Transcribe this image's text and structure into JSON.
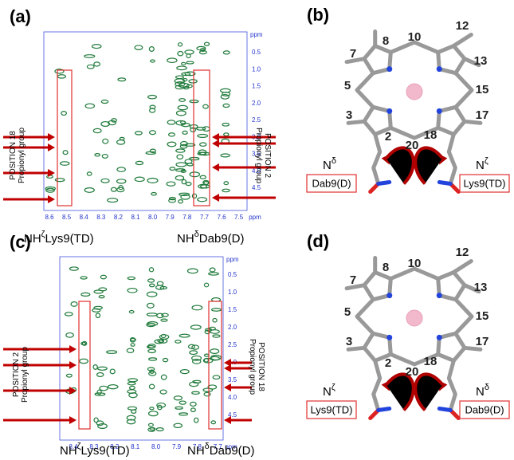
{
  "spectra": [
    {
      "label": "(a)",
      "unit": "ppm",
      "xticks": [
        "8.6",
        "8.5",
        "8.4",
        "8.3",
        "8.2",
        "8.1",
        "8.0",
        "7.9",
        "7.8",
        "7.7",
        "7.6",
        "7.5"
      ],
      "yticks": [
        "0.5",
        "1.0",
        "1.5",
        "2.0",
        "2.5",
        "3.0",
        "3.5",
        "4.0",
        "4.5"
      ],
      "left_note": [
        "POSITION 18",
        "Propionyl group"
      ],
      "right_note": [
        "POSITION 2",
        "Propionyl group"
      ],
      "left_peak": [
        "NH",
        "ζ",
        "Lys9(TD)"
      ],
      "right_peak": [
        "NH",
        "δ",
        "Dab9(D)"
      ]
    },
    {
      "label": "(c)",
      "unit": "ppm",
      "xticks": [
        "8.4",
        "8.3",
        "8.2",
        "8.1",
        "8.0",
        "7.9",
        "7.8",
        "7.7"
      ],
      "yticks": [
        "0.5",
        "1.0",
        "1.5",
        "2.0",
        "2.5",
        "3.0",
        "3.5",
        "4.0",
        "4.5"
      ],
      "left_note": [
        "POSITION 2",
        "Propionyl group"
      ],
      "right_note": [
        "POSITION 18",
        "Propionyl group"
      ],
      "left_peak": [
        "NH",
        "ζ",
        "Lys9(TD)"
      ],
      "right_peak": [
        "NH",
        "δ",
        "Dab9(D)"
      ]
    }
  ],
  "structures": [
    {
      "label": "(b)",
      "positions": [
        "8",
        "10",
        "12",
        "7",
        "13",
        "5",
        "15",
        "3",
        "17",
        "2",
        "20",
        "18"
      ],
      "left_nitrogen": [
        "N",
        "δ"
      ],
      "right_nitrogen": [
        "N",
        "ζ"
      ],
      "left_box": "Dab9(D)",
      "right_box": "Lys9(TD)"
    },
    {
      "label": "(d)",
      "positions": [
        "8",
        "10",
        "12",
        "7",
        "13",
        "5",
        "15",
        "3",
        "17",
        "2",
        "20",
        "18"
      ],
      "left_nitrogen": [
        "N",
        "ζ"
      ],
      "right_nitrogen": [
        "N",
        "δ"
      ],
      "left_box": "Lys9(TD)",
      "right_box": "Dab9(D)"
    }
  ]
}
